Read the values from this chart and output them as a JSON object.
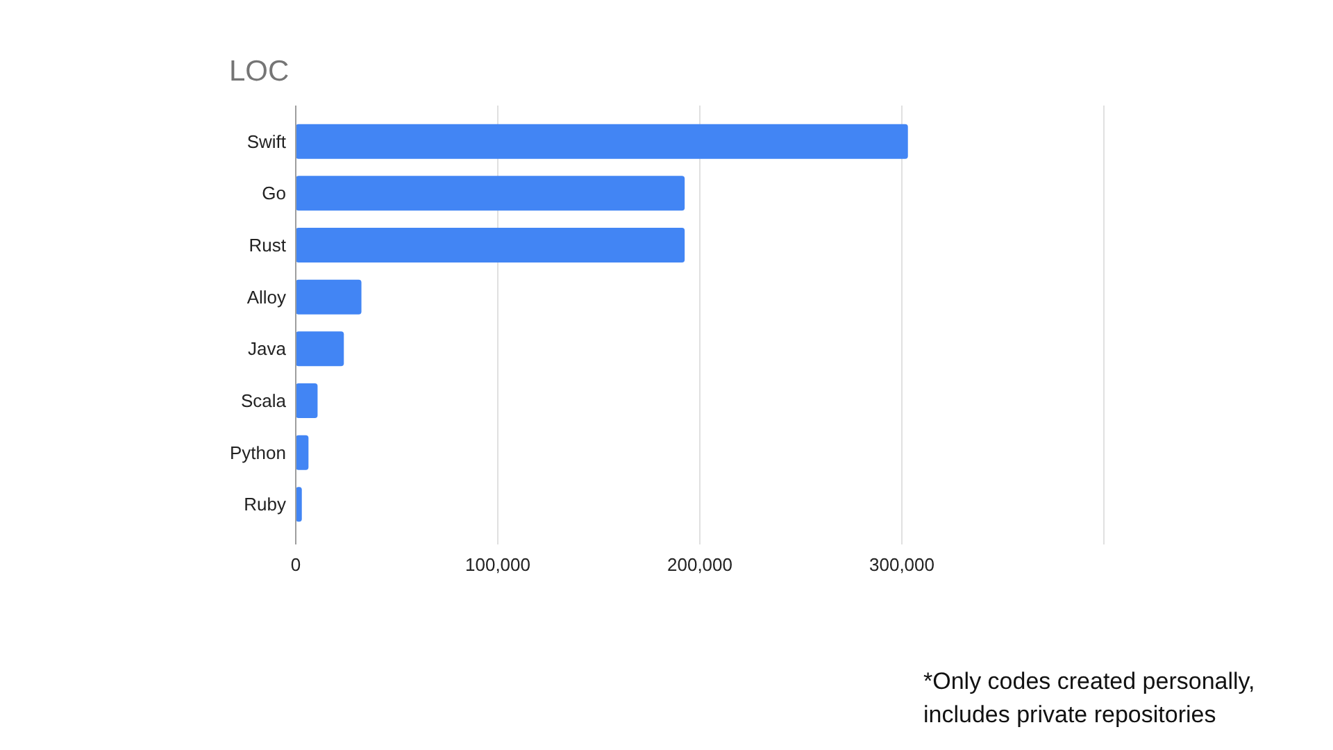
{
  "chart_data": {
    "type": "bar",
    "orientation": "horizontal",
    "title": "LOC",
    "categories": [
      "Swift",
      "Go",
      "Rust",
      "Alloy",
      "Java",
      "Scala",
      "Python",
      "Ruby"
    ],
    "values": [
      303000,
      192500,
      192500,
      32500,
      23800,
      10800,
      6300,
      3000
    ],
    "color": "#4285f4",
    "xlim": [
      0,
      400000
    ],
    "xticks": [
      {
        "value": 0,
        "label": "0"
      },
      {
        "value": 100000,
        "label": "100,000"
      },
      {
        "value": 200000,
        "label": "200,000"
      },
      {
        "value": 300000,
        "label": "300,000"
      },
      {
        "value": 400000,
        "label": null
      }
    ],
    "grid": "x",
    "annotations": [
      "*Only codes created personally,\nincludes private repositories"
    ]
  }
}
